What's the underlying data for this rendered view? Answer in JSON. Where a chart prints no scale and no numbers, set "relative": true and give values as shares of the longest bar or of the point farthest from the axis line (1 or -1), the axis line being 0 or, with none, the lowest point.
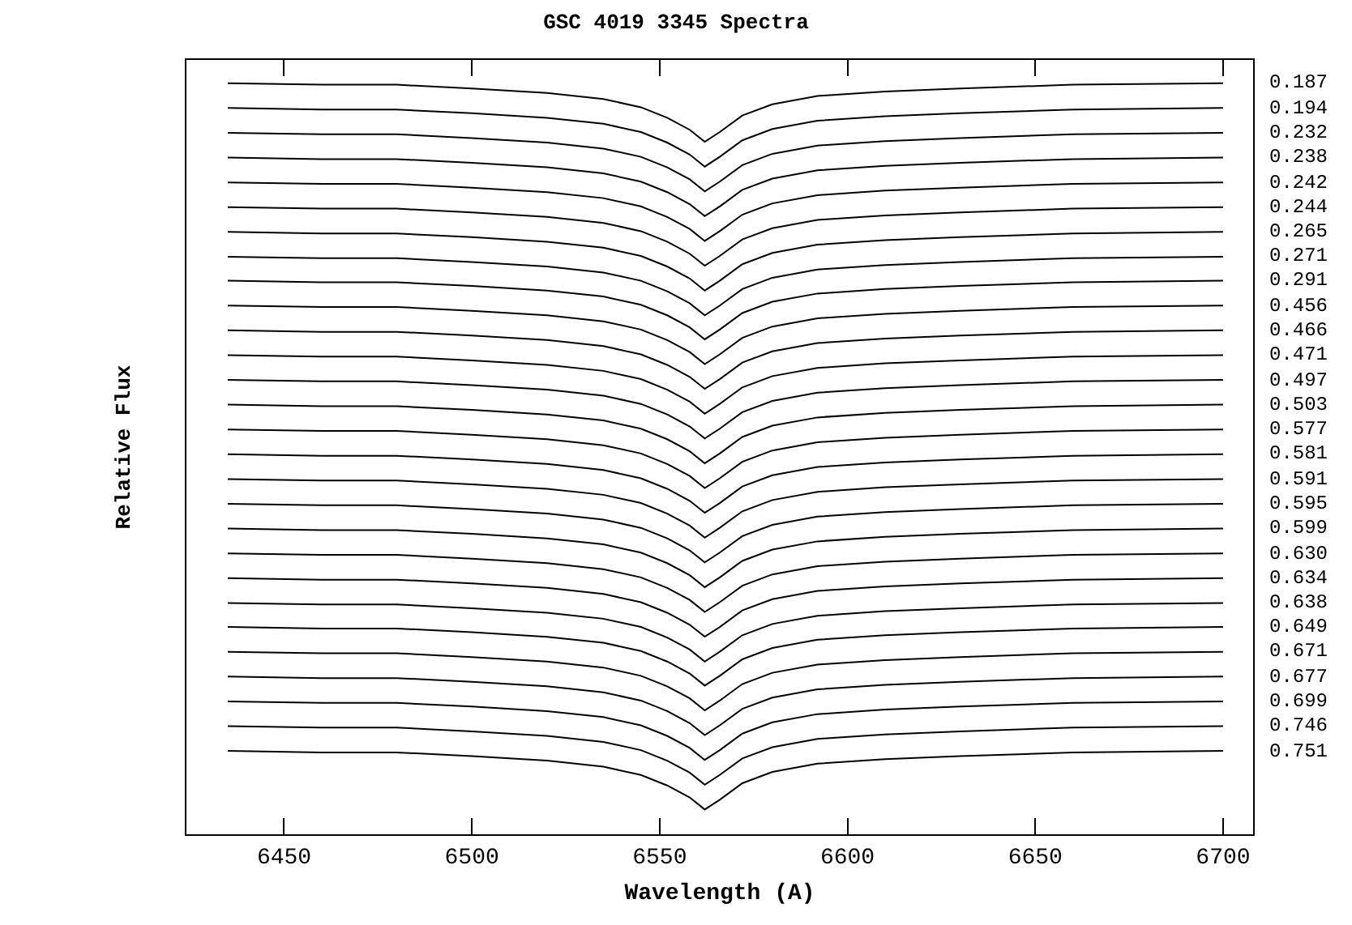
{
  "chart_data": {
    "type": "line",
    "title": "GSC 4019 3345 Spectra",
    "xlabel": "Wavelength (A)",
    "ylabel": "Relative Flux",
    "relative": true,
    "tick_labels": "x",
    "grid": false,
    "legend": "right",
    "marker": "none",
    "line_style": "solid",
    "xlim": [
      6424,
      6708
    ],
    "xticks": [
      6450,
      6500,
      6550,
      6600,
      6650,
      6700
    ],
    "x": [
      6435,
      6460,
      6480,
      6500,
      6520,
      6535,
      6545,
      6552,
      6558,
      6562,
      6566,
      6572,
      6580,
      6592,
      6610,
      6630,
      6660,
      6700
    ],
    "series": [
      {
        "name": "0.187",
        "color": "#000000",
        "values": [
          1.0,
          0.998,
          0.998,
          0.993,
          0.987,
          0.979,
          0.968,
          0.954,
          0.938,
          0.922,
          0.935,
          0.957,
          0.972,
          0.983,
          0.989,
          0.993,
          0.998,
          1.0
        ]
      },
      {
        "name": "0.194",
        "color": "#000000",
        "values": [
          0.967,
          0.965,
          0.965,
          0.96,
          0.954,
          0.946,
          0.935,
          0.921,
          0.905,
          0.889,
          0.902,
          0.924,
          0.939,
          0.95,
          0.956,
          0.96,
          0.965,
          0.967
        ]
      },
      {
        "name": "0.232",
        "color": "#000000",
        "values": [
          0.934,
          0.932,
          0.932,
          0.927,
          0.921,
          0.913,
          0.902,
          0.888,
          0.872,
          0.856,
          0.869,
          0.891,
          0.906,
          0.917,
          0.923,
          0.927,
          0.932,
          0.934
        ]
      },
      {
        "name": "0.238",
        "color": "#000000",
        "values": [
          0.901,
          0.899,
          0.899,
          0.894,
          0.888,
          0.88,
          0.869,
          0.855,
          0.839,
          0.823,
          0.836,
          0.858,
          0.873,
          0.884,
          0.89,
          0.894,
          0.899,
          0.901
        ]
      },
      {
        "name": "0.242",
        "color": "#000000",
        "values": [
          0.868,
          0.866,
          0.866,
          0.861,
          0.855,
          0.847,
          0.836,
          0.822,
          0.806,
          0.79,
          0.803,
          0.825,
          0.84,
          0.851,
          0.857,
          0.861,
          0.866,
          0.868
        ]
      },
      {
        "name": "0.244",
        "color": "#000000",
        "values": [
          0.835,
          0.833,
          0.833,
          0.828,
          0.822,
          0.814,
          0.803,
          0.789,
          0.773,
          0.757,
          0.77,
          0.792,
          0.807,
          0.818,
          0.824,
          0.828,
          0.833,
          0.835
        ]
      },
      {
        "name": "0.265",
        "color": "#000000",
        "values": [
          0.802,
          0.8,
          0.8,
          0.795,
          0.789,
          0.781,
          0.77,
          0.756,
          0.74,
          0.724,
          0.737,
          0.759,
          0.774,
          0.785,
          0.791,
          0.795,
          0.8,
          0.802
        ]
      },
      {
        "name": "0.271",
        "color": "#000000",
        "values": [
          0.769,
          0.767,
          0.767,
          0.762,
          0.756,
          0.748,
          0.737,
          0.723,
          0.707,
          0.691,
          0.704,
          0.726,
          0.741,
          0.752,
          0.758,
          0.762,
          0.767,
          0.769
        ]
      },
      {
        "name": "0.291",
        "color": "#000000",
        "values": [
          0.737,
          0.735,
          0.735,
          0.73,
          0.724,
          0.716,
          0.705,
          0.691,
          0.675,
          0.659,
          0.672,
          0.694,
          0.709,
          0.72,
          0.726,
          0.73,
          0.735,
          0.737
        ]
      },
      {
        "name": "0.456",
        "color": "#000000",
        "values": [
          0.704,
          0.702,
          0.702,
          0.697,
          0.691,
          0.683,
          0.672,
          0.658,
          0.642,
          0.626,
          0.639,
          0.661,
          0.676,
          0.687,
          0.693,
          0.697,
          0.702,
          0.704
        ]
      },
      {
        "name": "0.466",
        "color": "#000000",
        "values": [
          0.671,
          0.669,
          0.669,
          0.664,
          0.658,
          0.65,
          0.639,
          0.625,
          0.609,
          0.593,
          0.606,
          0.628,
          0.643,
          0.654,
          0.66,
          0.664,
          0.669,
          0.671
        ]
      },
      {
        "name": "0.471",
        "color": "#000000",
        "values": [
          0.638,
          0.636,
          0.636,
          0.631,
          0.625,
          0.617,
          0.606,
          0.592,
          0.576,
          0.56,
          0.573,
          0.595,
          0.61,
          0.621,
          0.627,
          0.631,
          0.636,
          0.638
        ]
      },
      {
        "name": "0.497",
        "color": "#000000",
        "values": [
          0.605,
          0.603,
          0.603,
          0.598,
          0.592,
          0.584,
          0.573,
          0.559,
          0.543,
          0.527,
          0.54,
          0.562,
          0.577,
          0.588,
          0.594,
          0.598,
          0.603,
          0.605
        ]
      },
      {
        "name": "0.503",
        "color": "#000000",
        "values": [
          0.572,
          0.57,
          0.57,
          0.565,
          0.559,
          0.551,
          0.54,
          0.526,
          0.51,
          0.494,
          0.507,
          0.529,
          0.544,
          0.555,
          0.561,
          0.565,
          0.57,
          0.572
        ]
      },
      {
        "name": "0.577",
        "color": "#000000",
        "values": [
          0.539,
          0.537,
          0.537,
          0.532,
          0.526,
          0.518,
          0.507,
          0.493,
          0.477,
          0.461,
          0.474,
          0.496,
          0.511,
          0.522,
          0.528,
          0.532,
          0.537,
          0.539
        ]
      },
      {
        "name": "0.581",
        "color": "#000000",
        "values": [
          0.506,
          0.504,
          0.504,
          0.499,
          0.493,
          0.485,
          0.474,
          0.46,
          0.444,
          0.428,
          0.441,
          0.463,
          0.478,
          0.489,
          0.495,
          0.499,
          0.504,
          0.506
        ]
      },
      {
        "name": "0.591",
        "color": "#000000",
        "values": [
          0.473,
          0.471,
          0.471,
          0.466,
          0.46,
          0.452,
          0.441,
          0.427,
          0.411,
          0.395,
          0.408,
          0.43,
          0.445,
          0.456,
          0.462,
          0.466,
          0.471,
          0.473
        ]
      },
      {
        "name": "0.595",
        "color": "#000000",
        "values": [
          0.44,
          0.438,
          0.438,
          0.433,
          0.427,
          0.419,
          0.408,
          0.394,
          0.378,
          0.362,
          0.375,
          0.397,
          0.412,
          0.423,
          0.429,
          0.433,
          0.438,
          0.44
        ]
      },
      {
        "name": "0.599",
        "color": "#000000",
        "values": [
          0.407,
          0.405,
          0.405,
          0.4,
          0.394,
          0.386,
          0.375,
          0.361,
          0.345,
          0.329,
          0.342,
          0.364,
          0.379,
          0.39,
          0.396,
          0.4,
          0.405,
          0.407
        ]
      },
      {
        "name": "0.630",
        "color": "#000000",
        "values": [
          0.374,
          0.372,
          0.372,
          0.367,
          0.361,
          0.353,
          0.342,
          0.328,
          0.312,
          0.296,
          0.309,
          0.331,
          0.346,
          0.357,
          0.363,
          0.367,
          0.372,
          0.374
        ]
      },
      {
        "name": "0.634",
        "color": "#000000",
        "values": [
          0.341,
          0.339,
          0.339,
          0.334,
          0.328,
          0.32,
          0.309,
          0.295,
          0.279,
          0.263,
          0.276,
          0.298,
          0.313,
          0.324,
          0.33,
          0.334,
          0.339,
          0.341
        ]
      },
      {
        "name": "0.638",
        "color": "#000000",
        "values": [
          0.308,
          0.306,
          0.306,
          0.301,
          0.295,
          0.287,
          0.276,
          0.262,
          0.246,
          0.23,
          0.243,
          0.265,
          0.28,
          0.291,
          0.297,
          0.301,
          0.306,
          0.308
        ]
      },
      {
        "name": "0.649",
        "color": "#000000",
        "values": [
          0.276,
          0.274,
          0.274,
          0.269,
          0.263,
          0.255,
          0.244,
          0.23,
          0.214,
          0.198,
          0.211,
          0.233,
          0.248,
          0.259,
          0.265,
          0.269,
          0.274,
          0.276
        ]
      },
      {
        "name": "0.671",
        "color": "#000000",
        "values": [
          0.243,
          0.241,
          0.241,
          0.236,
          0.23,
          0.222,
          0.211,
          0.197,
          0.181,
          0.165,
          0.178,
          0.2,
          0.215,
          0.226,
          0.232,
          0.236,
          0.241,
          0.243
        ]
      },
      {
        "name": "0.677",
        "color": "#000000",
        "values": [
          0.21,
          0.208,
          0.208,
          0.203,
          0.197,
          0.189,
          0.178,
          0.164,
          0.148,
          0.132,
          0.145,
          0.167,
          0.182,
          0.193,
          0.199,
          0.203,
          0.208,
          0.21
        ]
      },
      {
        "name": "0.699",
        "color": "#000000",
        "values": [
          0.177,
          0.175,
          0.175,
          0.17,
          0.164,
          0.156,
          0.145,
          0.131,
          0.115,
          0.099,
          0.112,
          0.134,
          0.149,
          0.16,
          0.166,
          0.17,
          0.175,
          0.177
        ]
      },
      {
        "name": "0.746",
        "color": "#000000",
        "values": [
          0.144,
          0.142,
          0.142,
          0.137,
          0.131,
          0.123,
          0.112,
          0.098,
          0.082,
          0.066,
          0.079,
          0.101,
          0.116,
          0.127,
          0.133,
          0.137,
          0.142,
          0.144
        ]
      },
      {
        "name": "0.751",
        "color": "#000000",
        "values": [
          0.111,
          0.109,
          0.109,
          0.104,
          0.098,
          0.09,
          0.079,
          0.065,
          0.049,
          0.033,
          0.046,
          0.068,
          0.083,
          0.094,
          0.1,
          0.104,
          0.109,
          0.111
        ]
      }
    ]
  }
}
